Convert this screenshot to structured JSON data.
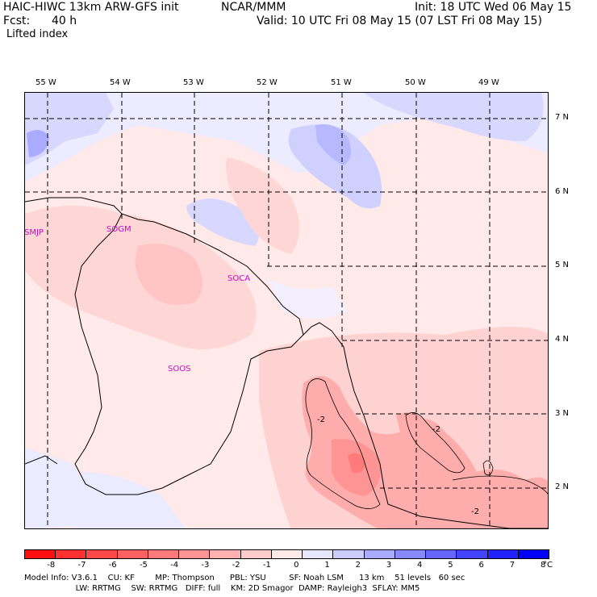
{
  "header": {
    "model": "HAIC-HIWC 13km ARW-GFS init",
    "org": "NCAR/MMM",
    "init": "Init: 18 UTC Wed 06 May 15",
    "fcst_label": "Fcst:",
    "fcst_value": "40 h",
    "valid": "Valid: 10 UTC Fri 08 May 15 (07 LST Fri 08 May 15)",
    "field": "Lifted index"
  },
  "map": {
    "lon_labels": [
      "55 W",
      "54 W",
      "53 W",
      "52 W",
      "51 W",
      "50 W",
      "49 W"
    ],
    "lat_labels": [
      "7 N",
      "6 N",
      "5 N",
      "4 N",
      "3 N",
      "2 N"
    ],
    "cities": [
      "SMJP",
      "SOGM",
      "SOCA",
      "SOOS"
    ],
    "contour_labels": [
      "-2",
      "-2",
      "-2"
    ]
  },
  "colorbar": {
    "labels": [
      "-8",
      "-7",
      "-6",
      "-5",
      "-4",
      "-3",
      "-2",
      "-1",
      "0",
      "1",
      "2",
      "3",
      "4",
      "5",
      "6",
      "7",
      "8"
    ],
    "unit": "°C",
    "colors": [
      "#ff1010",
      "#ff3030",
      "#ff4848",
      "#ff6060",
      "#ff7a7a",
      "#ff9494",
      "#ffb0b0",
      "#ffcccc",
      "#ffe9e9",
      "#e6e6ff",
      "#ccccff",
      "#aaaaff",
      "#8888ff",
      "#6666ff",
      "#4444ff",
      "#2222ff",
      "#0000ff"
    ]
  },
  "footer": {
    "line1": "Model Info: V3.6.1    CU: KF        MP: Thompson      PBL: YSU         SF: Noah LSM      13 km    51 levels   60 sec",
    "line2": "                    LW: RRTMG    SW: RRTMG   DIFF: full    KM: 2D Smagor  DAMP: Rayleigh3  SFLAY: MM5"
  }
}
